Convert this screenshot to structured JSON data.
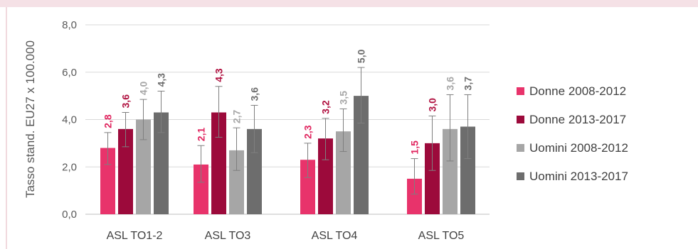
{
  "chart_data": {
    "type": "bar",
    "ylabel": "Tasso stand. EU27 x 100.000",
    "xlabel": "",
    "ylim": [
      0,
      8
    ],
    "yticks": [
      "0,0",
      "2,0",
      "4,0",
      "6,0",
      "8,0"
    ],
    "grid": true,
    "legend_position": "right",
    "categories": [
      "ASL TO1-2",
      "ASL TO3",
      "ASL TO4",
      "ASL TO5"
    ],
    "series": [
      {
        "name": "Donne 2008-2012",
        "color": "#e8336b",
        "values": [
          2.8,
          2.1,
          2.3,
          1.5
        ],
        "labels": [
          "2,8",
          "2,1",
          "2,3",
          "1,5"
        ],
        "label_color": "#e0245e",
        "err_low": [
          2.1,
          1.35,
          1.55,
          0.85
        ],
        "err_high": [
          3.45,
          2.9,
          3.0,
          2.35
        ]
      },
      {
        "name": "Donne 2013-2017",
        "color": "#9c0a3b",
        "values": [
          3.6,
          4.3,
          3.2,
          3.0
        ],
        "labels": [
          "3,6",
          "4,3",
          "3,2",
          "3,0"
        ],
        "label_color": "#b0103f",
        "err_low": [
          2.85,
          3.25,
          2.3,
          1.85
        ],
        "err_high": [
          4.3,
          5.4,
          4.05,
          4.15
        ]
      },
      {
        "name": "Uomini 2008-2012",
        "color": "#a6a6a6",
        "values": [
          4.0,
          2.7,
          3.5,
          3.6
        ],
        "labels": [
          "4,0",
          "2,7",
          "3,5",
          "3,6"
        ],
        "label_color": "#a6a6a6",
        "err_low": [
          3.15,
          1.85,
          2.65,
          2.25
        ],
        "err_high": [
          4.85,
          3.65,
          4.45,
          5.05
        ]
      },
      {
        "name": "Uomini 2013-2017",
        "color": "#6d6d6d",
        "values": [
          4.3,
          3.6,
          5.0,
          3.7
        ],
        "labels": [
          "4,3",
          "3,6",
          "5,0",
          "3,7"
        ],
        "label_color": "#6d6d6d",
        "err_low": [
          3.45,
          2.6,
          3.85,
          2.35
        ],
        "err_high": [
          5.2,
          4.6,
          6.2,
          5.05
        ]
      }
    ]
  }
}
